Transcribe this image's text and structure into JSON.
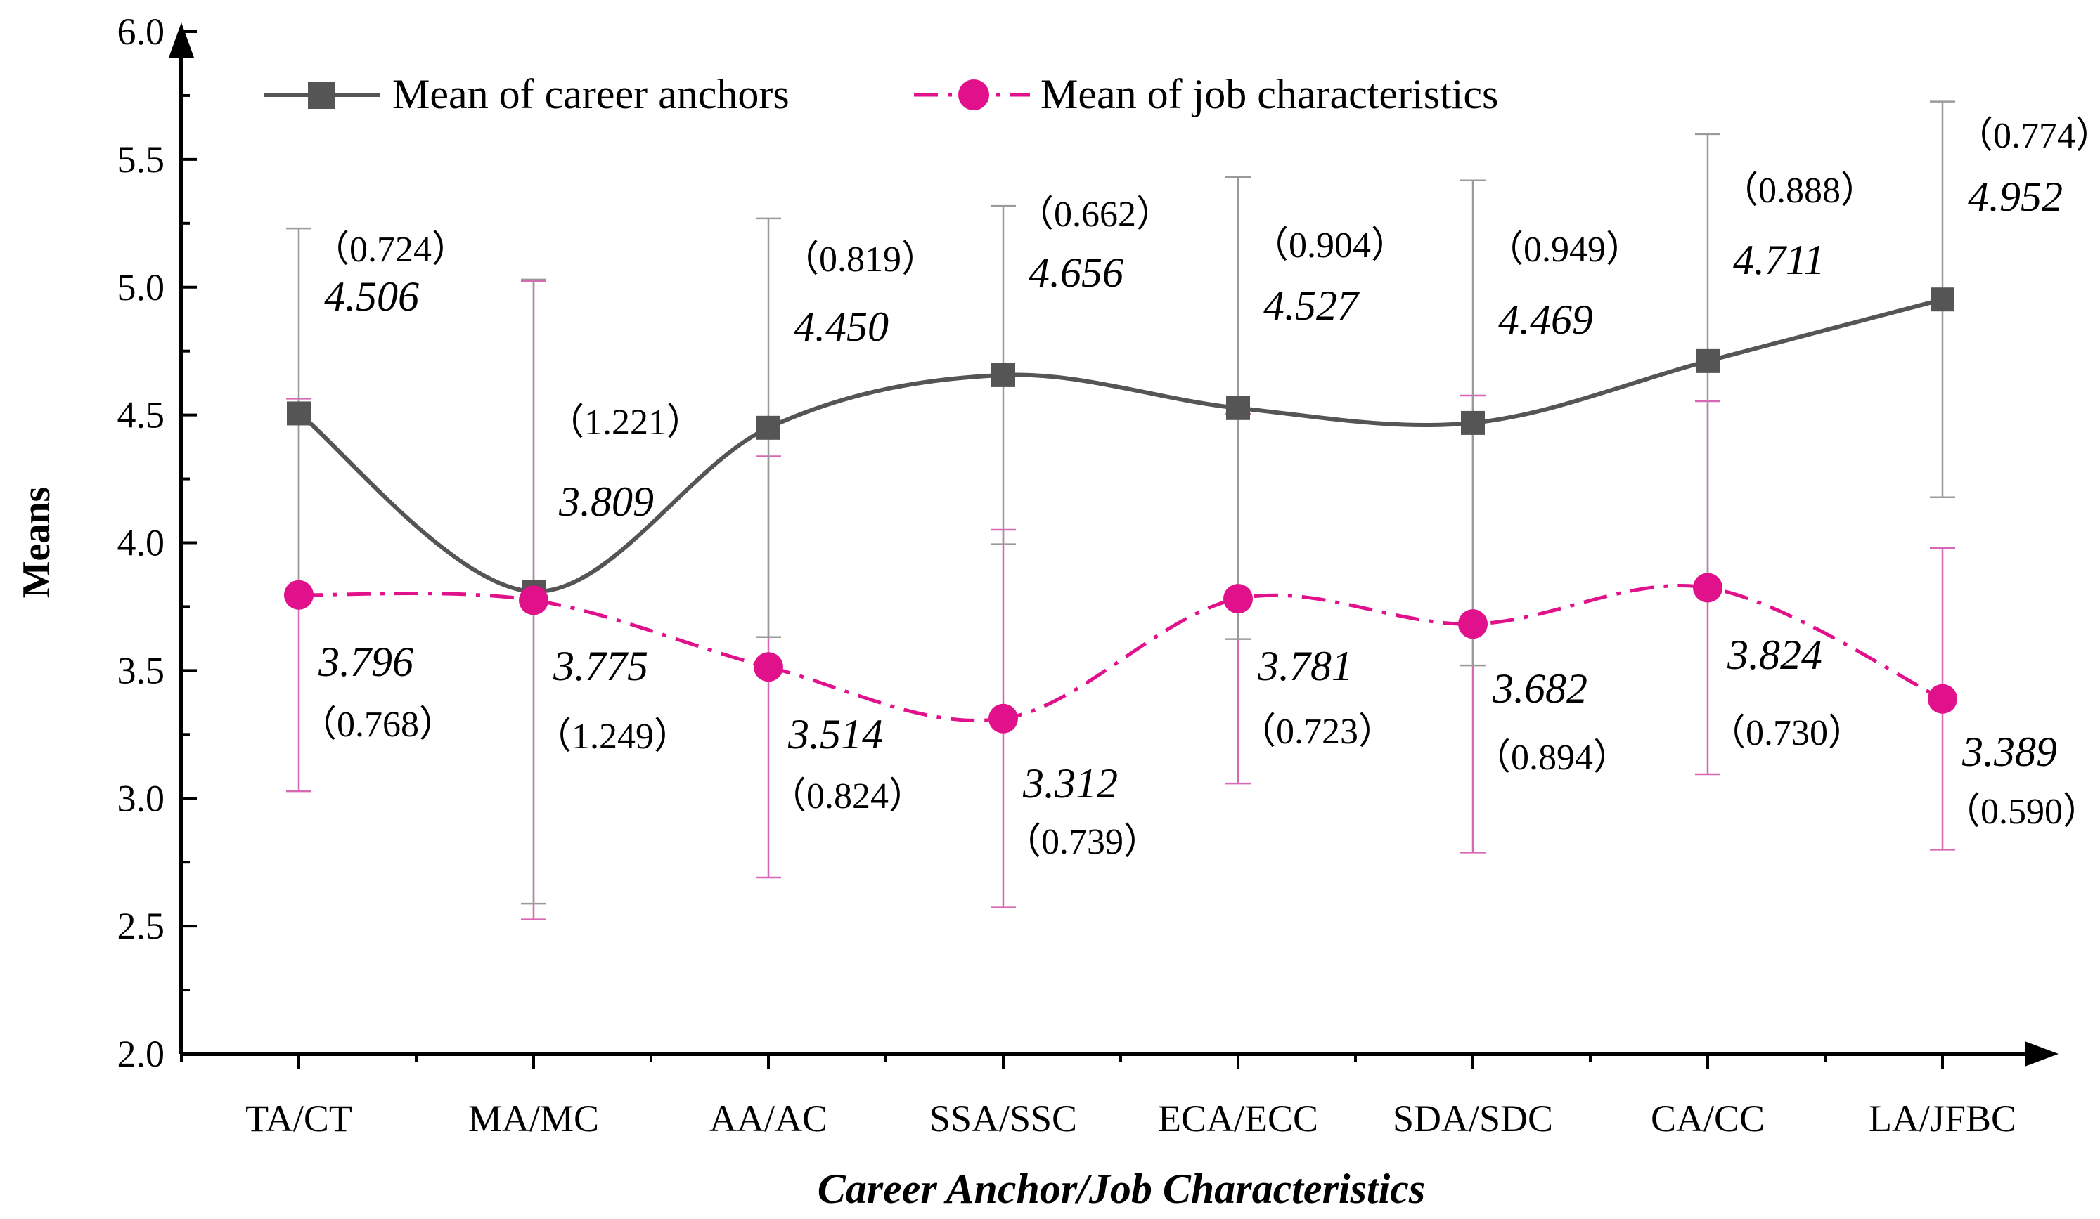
{
  "chart_data": {
    "type": "line",
    "title": "",
    "xlabel": "Career Anchor/Job Characteristics",
    "ylabel": "Means",
    "ylim": [
      2.0,
      6.0
    ],
    "yticks": [
      "2.0",
      "2.5",
      "3.0",
      "3.5",
      "4.0",
      "4.5",
      "5.0",
      "5.5",
      "6.0"
    ],
    "categories": [
      "TA/CT",
      "MA/MC",
      "AA/AC",
      "SSA/SSC",
      "ECA/ECC",
      "SDA/SDC",
      "CA/CC",
      "LA/JFBC"
    ],
    "legend_position": "top",
    "grid": false,
    "series": [
      {
        "name": "Mean of career anchors",
        "color": "#555555",
        "marker": "square",
        "line_style": "solid",
        "values": [
          4.506,
          3.809,
          4.45,
          4.656,
          4.527,
          4.469,
          4.711,
          4.952
        ],
        "sd": [
          0.724,
          1.221,
          0.819,
          0.662,
          0.904,
          0.949,
          0.888,
          0.774
        ],
        "value_labels": [
          "4.506",
          "3.809",
          "4.450",
          "4.656",
          "4.527",
          "4.469",
          "4.711",
          "4.952"
        ],
        "sd_labels": [
          "（0.724）",
          "（1.221）",
          "（0.819）",
          "（0.662）",
          "（0.904）",
          "（0.949）",
          "（0.888）",
          "（0.774）"
        ]
      },
      {
        "name": "Mean of job characteristics",
        "color": "#e0118a",
        "marker": "circle",
        "line_style": "dash-dot",
        "values": [
          3.796,
          3.775,
          3.514,
          3.312,
          3.781,
          3.682,
          3.824,
          3.389
        ],
        "sd": [
          0.768,
          1.249,
          0.824,
          0.739,
          0.723,
          0.894,
          0.73,
          0.59
        ],
        "value_labels": [
          "3.796",
          "3.775",
          "3.514",
          "3.312",
          "3.781",
          "3.682",
          "3.824",
          "3.389"
        ],
        "sd_labels": [
          "（0.768）",
          "（1.249）",
          "（0.824）",
          "（0.739）",
          "（0.723）",
          "（0.894）",
          "（0.730）",
          "（0.590）"
        ]
      }
    ]
  }
}
